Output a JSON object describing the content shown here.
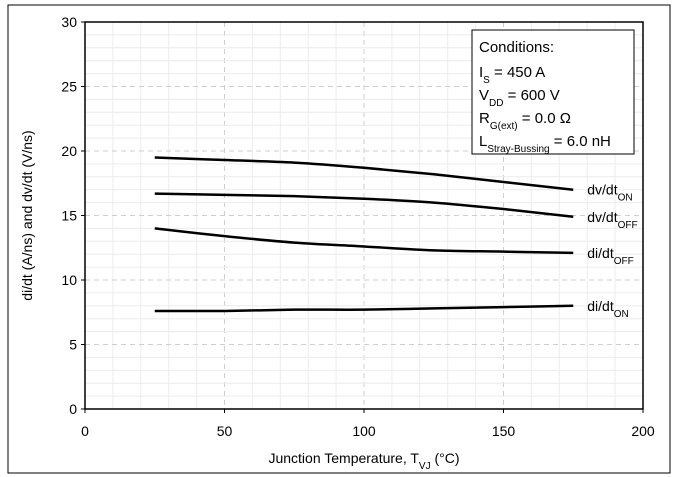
{
  "chart_data": {
    "type": "line",
    "xlabel": "Junction Temperature, T",
    "xlabel_sub": "VJ",
    "xlabel_unit": " (°C)",
    "ylabel": "di/dt (A/ns) and dv/dt (V/ns)",
    "xlim": [
      0,
      200
    ],
    "ylim": [
      0,
      30
    ],
    "xticks": [
      0,
      50,
      100,
      150,
      200
    ],
    "yticks": [
      0,
      5,
      10,
      15,
      20,
      25,
      30
    ],
    "grid": true,
    "series": [
      {
        "name": "dv/dt",
        "sub": "ON",
        "x": [
          25,
          50,
          75,
          100,
          125,
          150,
          175
        ],
        "y": [
          19.5,
          19.3,
          19.1,
          18.7,
          18.2,
          17.6,
          17.0
        ]
      },
      {
        "name": "dv/dt",
        "sub": "OFF",
        "x": [
          25,
          50,
          75,
          100,
          125,
          150,
          175
        ],
        "y": [
          16.7,
          16.6,
          16.5,
          16.3,
          16.0,
          15.5,
          14.9
        ]
      },
      {
        "name": "di/dt",
        "sub": "OFF",
        "x": [
          25,
          50,
          75,
          100,
          125,
          150,
          175
        ],
        "y": [
          14.0,
          13.4,
          12.9,
          12.6,
          12.3,
          12.2,
          12.1
        ]
      },
      {
        "name": "di/dt",
        "sub": "ON",
        "x": [
          25,
          50,
          75,
          100,
          125,
          150,
          175
        ],
        "y": [
          7.6,
          7.6,
          7.7,
          7.7,
          7.8,
          7.9,
          8.0
        ]
      }
    ],
    "annotation": {
      "title": "Conditions:",
      "lines": [
        {
          "main": "I",
          "sub": "S",
          "rest": " = 450 A"
        },
        {
          "main": "V",
          "sub": "DD",
          "rest": " = 600 V"
        },
        {
          "main": "R",
          "sub": "G(ext)",
          "rest": " = 0.0 Ω"
        },
        {
          "main": "L",
          "sub": "Stray-Bussing",
          "rest": " = 6.0 nH"
        }
      ]
    }
  }
}
